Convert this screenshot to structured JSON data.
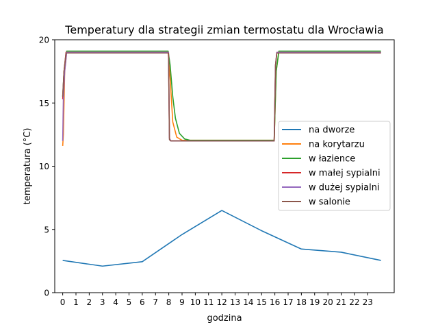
{
  "chart_data": {
    "type": "line",
    "title": "Temperatury dla strategii zmian termostatu dla Wrocławia",
    "xlabel": "godzina",
    "ylabel": "temperatura (°C)",
    "xlim": [
      -0.6,
      25.0
    ],
    "ylim": [
      0,
      20
    ],
    "xticks": [
      "0",
      "1",
      "2",
      "3",
      "4",
      "5",
      "6",
      "7",
      "8",
      "9",
      "10",
      "11",
      "12",
      "13",
      "14",
      "15",
      "16",
      "17",
      "18",
      "19",
      "20",
      "21",
      "22",
      "23"
    ],
    "yticks": [
      "0",
      "5",
      "10",
      "15",
      "20"
    ],
    "grid": false,
    "legend_position": "center right",
    "series": [
      {
        "name": "na dworze",
        "color": "#1f77b4",
        "x": [
          0,
          3,
          6,
          9,
          12,
          15,
          18,
          21,
          24
        ],
        "y": [
          2.55,
          2.1,
          2.45,
          4.6,
          6.5,
          4.9,
          3.45,
          3.2,
          2.55
        ]
      },
      {
        "name": "na korytarzu",
        "color": "#ff7f0e",
        "x": [
          0,
          0.05,
          0.15,
          0.3,
          7.95,
          8.1,
          8.3,
          8.6,
          9.0,
          15.95,
          16.1,
          16.3,
          24
        ],
        "y": [
          11.6,
          12.5,
          17.5,
          19.0,
          19.0,
          17.0,
          13.5,
          12.3,
          12.05,
          12.05,
          17.5,
          19.0,
          19.0
        ]
      },
      {
        "name": "w łazience",
        "color": "#2ca02c",
        "x": [
          0,
          0.1,
          0.3,
          7.95,
          8.1,
          8.3,
          8.5,
          8.8,
          9.2,
          9.6,
          15.95,
          16.1,
          16.3,
          24
        ],
        "y": [
          15.5,
          17.5,
          19.1,
          19.1,
          18.0,
          15.5,
          13.8,
          12.6,
          12.15,
          12.05,
          12.05,
          17.5,
          19.1,
          19.1
        ]
      },
      {
        "name": "w małej sypialni",
        "color": "#d62728",
        "x": [
          0,
          0.1,
          0.25,
          7.98,
          8.05,
          8.15,
          15.95,
          16.05,
          16.15,
          24
        ],
        "y": [
          15.3,
          17.5,
          19.0,
          19.0,
          12.2,
          12.0,
          12.0,
          18.0,
          19.0,
          19.0
        ]
      },
      {
        "name": "w dużej sypialni",
        "color": "#9467bd",
        "x": [
          0,
          0.05,
          0.15,
          0.3,
          7.98,
          8.05,
          8.15,
          15.95,
          16.05,
          16.15,
          24
        ],
        "y": [
          12.0,
          15.3,
          17.5,
          19.0,
          19.0,
          12.2,
          12.0,
          12.0,
          18.0,
          19.0,
          19.0
        ]
      },
      {
        "name": "w salonie",
        "color": "#8c564b",
        "x": [
          0,
          0.1,
          0.25,
          7.98,
          8.05,
          8.15,
          15.95,
          16.05,
          16.15,
          24
        ],
        "y": [
          15.5,
          17.5,
          18.95,
          18.95,
          12.1,
          12.0,
          12.0,
          18.0,
          18.95,
          18.95
        ]
      }
    ]
  }
}
